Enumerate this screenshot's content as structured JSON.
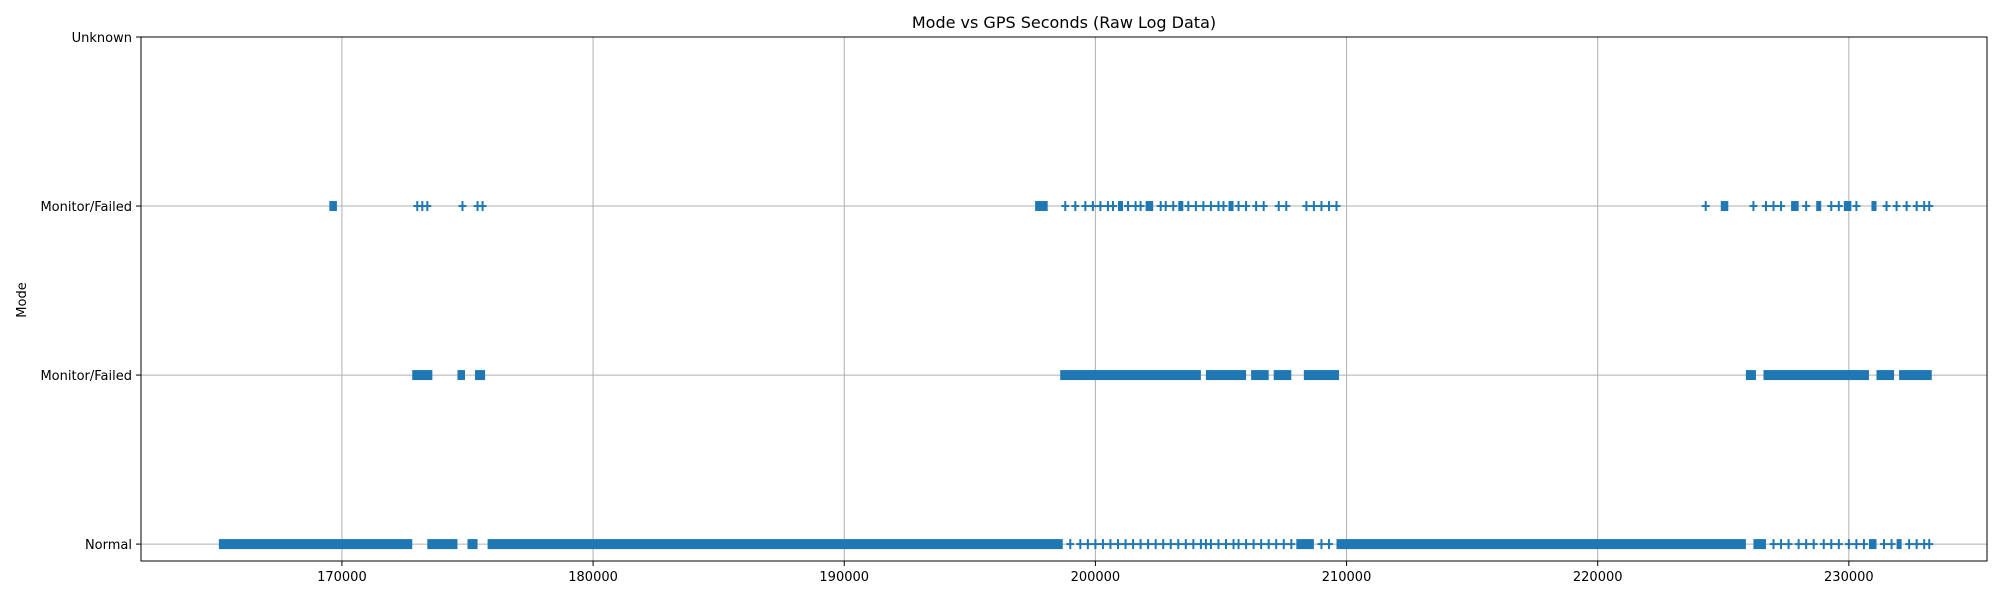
{
  "chart_data": {
    "type": "scatter",
    "title": "Mode vs GPS Seconds (Raw Log Data)",
    "xlabel": "",
    "ylabel": "Mode",
    "xlim": [
      162000,
      235500
    ],
    "ylim": [
      -0.1,
      3.0
    ],
    "x_ticks": [
      170000,
      180000,
      190000,
      200000,
      210000,
      220000,
      230000
    ],
    "y_categories": [
      "Normal",
      "Monitor/Failed",
      "Monitor/Failed",
      "Unknown"
    ],
    "grid": true,
    "marker": "|",
    "color": "#1f77b4",
    "series": [
      {
        "level": 0,
        "runs": [
          [
            165100,
            172800
          ],
          [
            173400,
            174600
          ],
          [
            175000,
            175400
          ],
          [
            175800,
            198700
          ],
          [
            208000,
            208700
          ],
          [
            209600,
            225900
          ],
          [
            226200,
            226700
          ],
          [
            230800,
            231100
          ],
          [
            231900,
            232100
          ]
        ],
        "points": [
          199000,
          199400,
          199700,
          200000,
          200300,
          200600,
          200900,
          201200,
          201500,
          201800,
          202100,
          202400,
          202700,
          203000,
          203300,
          203600,
          203900,
          204200,
          204400,
          204600,
          204900,
          205200,
          205500,
          205700,
          206000,
          206300,
          206600,
          206900,
          207200,
          207500,
          207800,
          209000,
          209300,
          227000,
          227300,
          227600,
          228000,
          228300,
          228600,
          229000,
          229300,
          229600,
          230000,
          230300,
          230600,
          231400,
          231700,
          232400,
          232700,
          233000,
          233200
        ]
      },
      {
        "level": 1,
        "runs": [
          [
            172800,
            173600
          ],
          [
            174600,
            174900
          ],
          [
            175300,
            175700
          ],
          [
            198600,
            204200
          ],
          [
            204400,
            206000
          ],
          [
            206200,
            206900
          ],
          [
            207100,
            207800
          ],
          [
            208300,
            209700
          ],
          [
            225900,
            226300
          ],
          [
            226600,
            230800
          ],
          [
            231100,
            231800
          ],
          [
            232000,
            233300
          ]
        ],
        "points": []
      },
      {
        "level": 2,
        "runs": [
          [
            169500,
            169800
          ],
          [
            197600,
            198100
          ],
          [
            200900,
            201100
          ],
          [
            202000,
            202300
          ],
          [
            203300,
            203500
          ],
          [
            205300,
            205500
          ],
          [
            224900,
            225200
          ],
          [
            227700,
            228000
          ],
          [
            228700,
            228900
          ],
          [
            229800,
            230100
          ],
          [
            230900,
            231100
          ]
        ],
        "points": [
          173000,
          173200,
          173400,
          174800,
          175400,
          175600,
          198800,
          199200,
          199600,
          199900,
          200200,
          200500,
          200700,
          201300,
          201600,
          201800,
          202600,
          202800,
          203100,
          203700,
          204000,
          204300,
          204600,
          204900,
          205100,
          205700,
          206000,
          206400,
          206700,
          207300,
          207600,
          208400,
          208700,
          209000,
          209300,
          209600,
          224300,
          226200,
          226700,
          227000,
          227300,
          228300,
          229300,
          229600,
          230300,
          231500,
          231900,
          232300,
          232700,
          233000,
          233200
        ]
      }
    ]
  }
}
